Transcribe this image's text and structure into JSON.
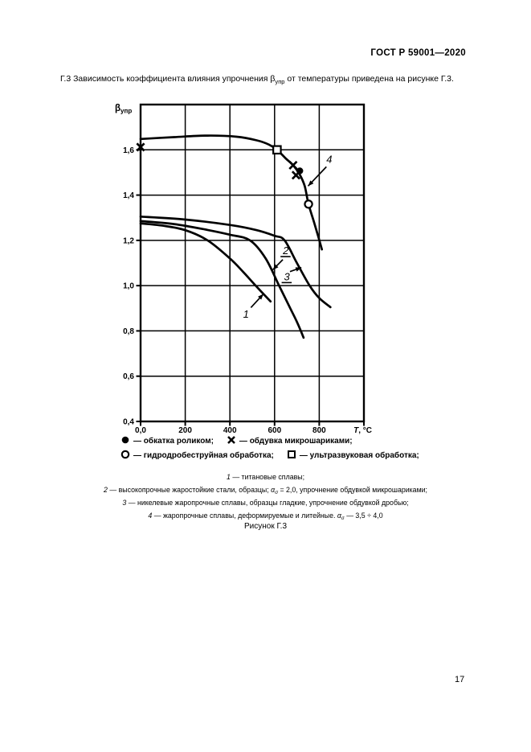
{
  "page": {
    "header": "ГОСТ Р 59001—2020",
    "figure_caption": "Рисунок Г.3",
    "page_number": "17"
  },
  "paragraph": {
    "pre": "Г.3 Зависимость коэффициента влияния упрочнения β",
    "sub": "упр",
    "post": " от температуры приведена на рисунке Г.3."
  },
  "legend": {
    "items": [
      {
        "symbol": "filled-circle",
        "text": "— обкатка роликом;"
      },
      {
        "symbol": "cross",
        "text": "— обдувка микрошариками;"
      },
      {
        "symbol": "open-circle",
        "text": "— гидродробеструйная обработка;"
      },
      {
        "symbol": "open-square",
        "text": "— ультразвуковая обработка;"
      }
    ]
  },
  "notes": [
    {
      "num": "1",
      "pre": "— титановые сплавы;",
      "alpha": "",
      "alpha_sub": "",
      "post": ""
    },
    {
      "num": "2",
      "pre": "— высокопрочные жаростойкие стали, образцы; ",
      "alpha": "α",
      "alpha_sub": "σ",
      "post": " = 2,0, упрочнение обдувкой микрошариками;"
    },
    {
      "num": "3",
      "pre": "— никелевые жаропрочные сплавы, образцы гладкие, упрочнение обдувкой дробью;",
      "alpha": "",
      "alpha_sub": "",
      "post": ""
    },
    {
      "num": "4",
      "pre": "— жаропрочные сплавы, деформируемые и литейные. ",
      "alpha": "α",
      "alpha_sub": "σ",
      "post": " — 3,5 ÷ 4,0"
    }
  ],
  "chart_data": {
    "type": "line",
    "title": "Рисунок Г.3 — Зависимость коэффициента влияния упрочнения от температуры",
    "xlabel": "T, °C",
    "ylabel": {
      "base": "β",
      "sub": "упр"
    },
    "xlim": [
      0,
      1000
    ],
    "ylim": [
      0.4,
      1.8
    ],
    "grid": true,
    "legend_position": "below",
    "x_ticks": [
      {
        "v": 0,
        "label": "0,0"
      },
      {
        "v": 200,
        "label": "200"
      },
      {
        "v": 400,
        "label": "400"
      },
      {
        "v": 600,
        "label": "600"
      },
      {
        "v": 800,
        "label": "800"
      }
    ],
    "y_ticks": [
      {
        "v": 1.6,
        "label": "1,6"
      },
      {
        "v": 1.4,
        "label": "1,4"
      },
      {
        "v": 1.2,
        "label": "1,2"
      },
      {
        "v": 1.0,
        "label": "1,0"
      },
      {
        "v": 0.8,
        "label": "0,8"
      },
      {
        "v": 0.6,
        "label": "0,6"
      },
      {
        "v": 0.4,
        "label": "0,4"
      }
    ],
    "series": [
      {
        "name": "1 — титановые сплавы",
        "points": [
          [
            0,
            1.275
          ],
          [
            100,
            1.265
          ],
          [
            200,
            1.245
          ],
          [
            300,
            1.2
          ],
          [
            400,
            1.12
          ],
          [
            460,
            1.06
          ],
          [
            520,
            0.995
          ],
          [
            582,
            0.93
          ]
        ]
      },
      {
        "name": "2 — высокопрочные жаростойкие стали, образцы, упрочнение обдувкой микрошариками",
        "points": [
          [
            0,
            1.285
          ],
          [
            150,
            1.272
          ],
          [
            300,
            1.246
          ],
          [
            400,
            1.225
          ],
          [
            490,
            1.2
          ],
          [
            560,
            1.12
          ],
          [
            620,
            1.0
          ],
          [
            670,
            0.9
          ],
          [
            700,
            0.84
          ],
          [
            730,
            0.77
          ]
        ]
      },
      {
        "name": "3 — никелевые жаропрочные сплавы, образцы гладкие, упрочнение обдувкой дробью",
        "points": [
          [
            0,
            1.305
          ],
          [
            200,
            1.292
          ],
          [
            400,
            1.268
          ],
          [
            520,
            1.245
          ],
          [
            600,
            1.22
          ],
          [
            645,
            1.2
          ],
          [
            700,
            1.1
          ],
          [
            757,
            1.0
          ],
          [
            800,
            0.945
          ],
          [
            850,
            0.905
          ]
        ]
      },
      {
        "name": "4 — жаропрочные сплавы, деформируемые и литейные",
        "points": [
          [
            0,
            1.648
          ],
          [
            150,
            1.656
          ],
          [
            300,
            1.663
          ],
          [
            430,
            1.658
          ],
          [
            520,
            1.642
          ],
          [
            575,
            1.623
          ],
          [
            611,
            1.6
          ],
          [
            650,
            1.562
          ],
          [
            683,
            1.532
          ],
          [
            713,
            1.49
          ],
          [
            735,
            1.44
          ],
          [
            752,
            1.36
          ],
          [
            780,
            1.27
          ],
          [
            812,
            1.16
          ]
        ]
      }
    ],
    "markers": [
      {
        "type": "cross",
        "x": 0,
        "y": 1.612
      },
      {
        "type": "square",
        "x": 611,
        "y": 1.6
      },
      {
        "type": "cross",
        "x": 683,
        "y": 1.532
      },
      {
        "type": "cross",
        "x": 696,
        "y": 1.488
      },
      {
        "type": "dot",
        "x": 713,
        "y": 1.507
      },
      {
        "type": "circle",
        "x": 752,
        "y": 1.36
      }
    ],
    "curve_labels": [
      {
        "text": "1",
        "x": 472,
        "y": 0.875,
        "underline": false,
        "leader": [
          [
            494,
            0.903
          ],
          [
            550,
            0.963
          ]
        ]
      },
      {
        "text": "2",
        "x": 650,
        "y": 1.155,
        "underline": true,
        "leader": [
          [
            637,
            1.115
          ],
          [
            592,
            1.07
          ]
        ]
      },
      {
        "text": "3",
        "x": 655,
        "y": 1.04,
        "underline": true,
        "leader": [
          [
            669,
            1.062
          ],
          [
            720,
            1.08
          ]
        ]
      },
      {
        "text": "4",
        "x": 845,
        "y": 1.558,
        "underline": false,
        "leader": [
          [
            832,
            1.525
          ],
          [
            750,
            1.44
          ]
        ]
      }
    ],
    "colors": {
      "ink": "#000000",
      "background": "#ffffff"
    }
  }
}
